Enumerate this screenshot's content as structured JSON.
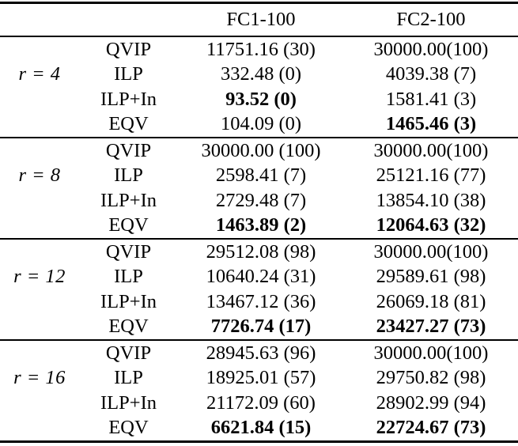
{
  "page": {
    "background": "#ffffff",
    "text_color": "#000000"
  },
  "table": {
    "header": {
      "fc1": "FC1-100",
      "fc2": "FC2-100"
    },
    "groups": [
      {
        "label": "r = 4",
        "rows": [
          {
            "method": "QVIP",
            "fc1": "11751.16 (30)",
            "fc1_bold": false,
            "fc2": "30000.00(100)",
            "fc2_bold": false
          },
          {
            "method": "ILP",
            "fc1": "332.48 (0)",
            "fc1_bold": false,
            "fc2": "4039.38 (7)",
            "fc2_bold": false
          },
          {
            "method": "ILP+In",
            "fc1": "93.52 (0)",
            "fc1_bold": true,
            "fc2": "1581.41 (3)",
            "fc2_bold": false
          },
          {
            "method": "EQV",
            "fc1": "104.09 (0)",
            "fc1_bold": false,
            "fc2": "1465.46 (3)",
            "fc2_bold": true
          }
        ]
      },
      {
        "label": "r = 8",
        "rows": [
          {
            "method": "QVIP",
            "fc1": "30000.00 (100)",
            "fc1_bold": false,
            "fc2": "30000.00(100)",
            "fc2_bold": false
          },
          {
            "method": "ILP",
            "fc1": "2598.41 (7)",
            "fc1_bold": false,
            "fc2": "25121.16 (77)",
            "fc2_bold": false
          },
          {
            "method": "ILP+In",
            "fc1": "2729.48 (7)",
            "fc1_bold": false,
            "fc2": "13854.10 (38)",
            "fc2_bold": false
          },
          {
            "method": "EQV",
            "fc1": "1463.89 (2)",
            "fc1_bold": true,
            "fc2": "12064.63 (32)",
            "fc2_bold": true
          }
        ]
      },
      {
        "label": "r = 12",
        "rows": [
          {
            "method": "QVIP",
            "fc1": "29512.08 (98)",
            "fc1_bold": false,
            "fc2": "30000.00(100)",
            "fc2_bold": false
          },
          {
            "method": "ILP",
            "fc1": "10640.24 (31)",
            "fc1_bold": false,
            "fc2": "29589.61 (98)",
            "fc2_bold": false
          },
          {
            "method": "ILP+In",
            "fc1": "13467.12 (36)",
            "fc1_bold": false,
            "fc2": "26069.18 (81)",
            "fc2_bold": false
          },
          {
            "method": "EQV",
            "fc1": "7726.74 (17)",
            "fc1_bold": true,
            "fc2": "23427.27 (73)",
            "fc2_bold": true
          }
        ]
      },
      {
        "label": "r = 16",
        "rows": [
          {
            "method": "QVIP",
            "fc1": "28945.63 (96)",
            "fc1_bold": false,
            "fc2": "30000.00(100)",
            "fc2_bold": false
          },
          {
            "method": "ILP",
            "fc1": "18925.01 (57)",
            "fc1_bold": false,
            "fc2": "29750.82 (98)",
            "fc2_bold": false
          },
          {
            "method": "ILP+In",
            "fc1": "21172.09 (60)",
            "fc1_bold": false,
            "fc2": "28902.99 (94)",
            "fc2_bold": false
          },
          {
            "method": "EQV",
            "fc1": "6621.84 (15)",
            "fc1_bold": true,
            "fc2": "22724.67 (73)",
            "fc2_bold": true
          }
        ]
      }
    ]
  }
}
